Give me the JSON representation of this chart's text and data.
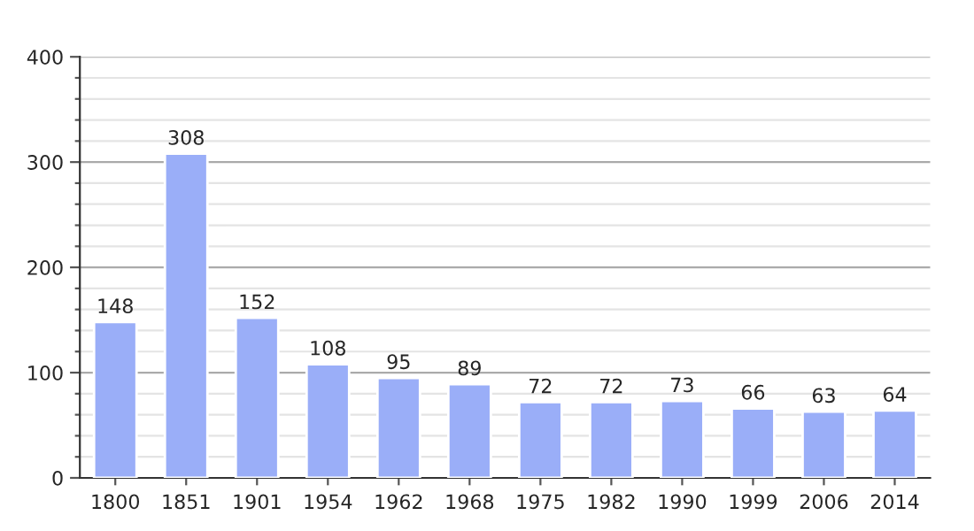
{
  "chart_data": {
    "type": "bar",
    "categories": [
      "1800",
      "1851",
      "1901",
      "1954",
      "1962",
      "1968",
      "1975",
      "1982",
      "1990",
      "1999",
      "2006",
      "2014"
    ],
    "values": [
      148,
      308,
      152,
      108,
      95,
      89,
      72,
      72,
      73,
      66,
      63,
      64
    ],
    "color": "#9aaef8",
    "ylim": [
      0,
      400
    ],
    "yticks": [
      0,
      {
        "value": 20,
        "label": null
      },
      {
        "value": 40,
        "label": null
      },
      {
        "value": 60,
        "label": null
      },
      {
        "value": 80,
        "label": null
      },
      100,
      {
        "value": 120,
        "label": null
      },
      {
        "value": 140,
        "label": null
      },
      {
        "value": 160,
        "label": null
      },
      {
        "value": 180,
        "label": null
      },
      200,
      {
        "value": 220,
        "label": null
      },
      {
        "value": 240,
        "label": null
      },
      {
        "value": 260,
        "label": null
      },
      {
        "value": 280,
        "label": null
      },
      300,
      {
        "value": 320,
        "label": null
      },
      {
        "value": 340,
        "label": null
      },
      {
        "value": 360,
        "label": null
      },
      {
        "value": 380,
        "label": null
      },
      400
    ],
    "grid": "y",
    "data_labels": true
  }
}
